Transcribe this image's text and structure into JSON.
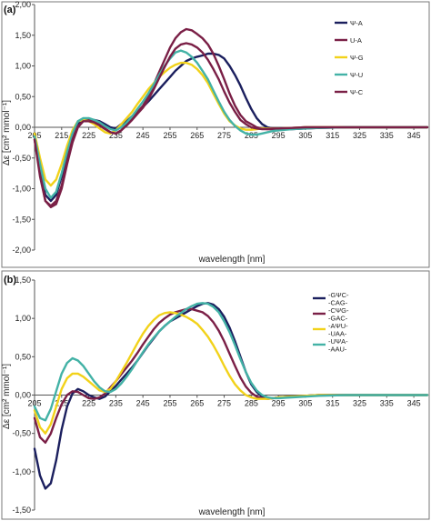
{
  "chart_data": [
    {
      "panel": "(a)",
      "type": "line",
      "xlabel": "wavelength [nm]",
      "ylabel": "Δε [cm² mmol⁻¹]",
      "xlim": [
        205,
        350
      ],
      "ylim": [
        -2.0,
        2.0
      ],
      "x_ticks": [
        205,
        215,
        225,
        235,
        245,
        255,
        265,
        275,
        285,
        295,
        305,
        315,
        325,
        335,
        345
      ],
      "y_ticks": [
        -2.0,
        -1.5,
        -1.0,
        -0.5,
        0.0,
        0.5,
        1.0,
        1.5,
        2.0
      ],
      "y_tick_labels": [
        "-2,00",
        "-1,50",
        "-1,00",
        "-0,50",
        "0,00",
        "0,50",
        "1,00",
        "1,50",
        "2,00"
      ],
      "legend_position": "top-right",
      "series": [
        {
          "name": "Ψ-A",
          "color": "#1b1f5e",
          "x": [
            205,
            207,
            209,
            211,
            213,
            215,
            217,
            219,
            221,
            223,
            225,
            227,
            229,
            231,
            233,
            235,
            237,
            239,
            241,
            243,
            245,
            247,
            249,
            251,
            253,
            255,
            257,
            259,
            261,
            263,
            265,
            267,
            269,
            271,
            273,
            275,
            277,
            279,
            281,
            283,
            285,
            287,
            289,
            291,
            293,
            295,
            300,
            305,
            310,
            320,
            330,
            340,
            350
          ],
          "y": [
            -0.15,
            -0.7,
            -1.1,
            -1.2,
            -1.1,
            -0.8,
            -0.5,
            -0.2,
            0.05,
            0.12,
            0.12,
            0.12,
            0.1,
            0.05,
            0.0,
            -0.02,
            0.05,
            0.1,
            0.18,
            0.25,
            0.33,
            0.42,
            0.52,
            0.62,
            0.72,
            0.82,
            0.92,
            1.0,
            1.08,
            1.12,
            1.15,
            1.17,
            1.2,
            1.2,
            1.18,
            1.12,
            1.0,
            0.85,
            0.68,
            0.48,
            0.3,
            0.15,
            0.05,
            0.0,
            -0.02,
            -0.03,
            -0.03,
            -0.02,
            -0.01,
            0.0,
            0.0,
            0.0,
            0.0
          ]
        },
        {
          "name": "U-A",
          "color": "#7a1f46",
          "x": [
            205,
            207,
            209,
            211,
            213,
            215,
            217,
            219,
            221,
            223,
            225,
            227,
            229,
            231,
            233,
            235,
            237,
            239,
            241,
            243,
            245,
            247,
            249,
            251,
            253,
            255,
            257,
            259,
            261,
            263,
            265,
            267,
            269,
            271,
            273,
            275,
            277,
            279,
            281,
            283,
            285,
            287,
            289,
            291,
            293,
            295,
            300,
            305,
            310,
            320,
            330,
            340,
            350
          ],
          "y": [
            -0.2,
            -0.75,
            -1.2,
            -1.3,
            -1.25,
            -1.0,
            -0.6,
            -0.25,
            0.0,
            0.1,
            0.12,
            0.1,
            0.05,
            -0.02,
            -0.08,
            -0.1,
            -0.05,
            0.05,
            0.15,
            0.25,
            0.35,
            0.5,
            0.7,
            0.9,
            1.1,
            1.3,
            1.45,
            1.55,
            1.6,
            1.58,
            1.52,
            1.45,
            1.35,
            1.2,
            1.0,
            0.78,
            0.55,
            0.35,
            0.2,
            0.1,
            0.05,
            0.0,
            -0.02,
            -0.03,
            -0.03,
            -0.02,
            -0.01,
            0.0,
            0.0,
            0.0,
            0.0,
            0.0,
            0.0
          ]
        },
        {
          "name": "Ψ-G",
          "color": "#f2d21a",
          "x": [
            205,
            207,
            209,
            211,
            213,
            215,
            217,
            219,
            221,
            223,
            225,
            227,
            229,
            231,
            233,
            235,
            237,
            239,
            241,
            243,
            245,
            247,
            249,
            251,
            253,
            255,
            257,
            259,
            261,
            263,
            265,
            267,
            269,
            271,
            273,
            275,
            277,
            279,
            281,
            283,
            285,
            287,
            289,
            291,
            293,
            295,
            300,
            305,
            310,
            320,
            330,
            340,
            350
          ],
          "y": [
            -0.1,
            -0.5,
            -0.85,
            -0.95,
            -0.85,
            -0.6,
            -0.3,
            -0.05,
            0.1,
            0.12,
            0.1,
            0.05,
            -0.02,
            -0.08,
            -0.1,
            -0.05,
            0.05,
            0.15,
            0.25,
            0.38,
            0.5,
            0.62,
            0.72,
            0.82,
            0.9,
            0.97,
            1.02,
            1.05,
            1.05,
            1.02,
            0.95,
            0.85,
            0.72,
            0.55,
            0.38,
            0.22,
            0.1,
            0.03,
            -0.02,
            -0.04,
            -0.04,
            -0.03,
            -0.02,
            -0.02,
            -0.02,
            -0.02,
            -0.01,
            0.0,
            0.0,
            0.0,
            0.0,
            0.0,
            0.0
          ]
        },
        {
          "name": "Ψ-U",
          "color": "#43b2a6",
          "x": [
            205,
            207,
            209,
            211,
            213,
            215,
            217,
            219,
            221,
            223,
            225,
            227,
            229,
            231,
            233,
            235,
            237,
            239,
            241,
            243,
            245,
            247,
            249,
            251,
            253,
            255,
            257,
            259,
            261,
            263,
            265,
            267,
            269,
            271,
            273,
            275,
            277,
            279,
            281,
            283,
            285,
            287,
            289,
            291,
            293,
            295,
            300,
            305,
            310,
            320,
            330,
            340,
            350
          ],
          "y": [
            -0.15,
            -0.6,
            -1.0,
            -1.15,
            -1.05,
            -0.75,
            -0.4,
            -0.1,
            0.1,
            0.15,
            0.15,
            0.12,
            0.08,
            0.02,
            -0.03,
            -0.05,
            0.0,
            0.08,
            0.18,
            0.3,
            0.42,
            0.55,
            0.7,
            0.85,
            1.0,
            1.12,
            1.22,
            1.25,
            1.22,
            1.15,
            1.05,
            0.92,
            0.78,
            0.6,
            0.42,
            0.25,
            0.12,
            0.02,
            -0.05,
            -0.1,
            -0.12,
            -0.12,
            -0.1,
            -0.08,
            -0.06,
            -0.05,
            -0.03,
            -0.02,
            -0.01,
            0.0,
            0.0,
            0.0,
            0.0
          ]
        },
        {
          "name": "Ψ-C",
          "color": "#7a1f46",
          "x": [
            205,
            207,
            209,
            211,
            213,
            215,
            217,
            219,
            221,
            223,
            225,
            227,
            229,
            231,
            233,
            235,
            237,
            239,
            241,
            243,
            245,
            247,
            249,
            251,
            253,
            255,
            257,
            259,
            261,
            263,
            265,
            267,
            269,
            271,
            273,
            275,
            277,
            279,
            281,
            283,
            285,
            287,
            289,
            291,
            293,
            295,
            300,
            305,
            310,
            320,
            330,
            340,
            350
          ],
          "y": [
            -0.2,
            -0.8,
            -1.2,
            -1.28,
            -1.2,
            -0.95,
            -0.55,
            -0.2,
            0.02,
            0.1,
            0.1,
            0.08,
            0.03,
            -0.03,
            -0.08,
            -0.1,
            -0.05,
            0.03,
            0.12,
            0.22,
            0.32,
            0.45,
            0.62,
            0.8,
            0.98,
            1.15,
            1.28,
            1.35,
            1.37,
            1.35,
            1.3,
            1.22,
            1.1,
            0.95,
            0.78,
            0.58,
            0.4,
            0.25,
            0.12,
            0.05,
            0.0,
            -0.02,
            -0.03,
            -0.03,
            -0.02,
            -0.02,
            -0.01,
            0.0,
            0.0,
            0.0,
            0.0,
            0.0,
            0.0
          ]
        }
      ]
    },
    {
      "panel": "(b)",
      "type": "line",
      "xlabel": "wavelength [nm]",
      "ylabel": "Δε [cm² mmol⁻¹]",
      "xlim": [
        205,
        350
      ],
      "ylim": [
        -1.5,
        1.5
      ],
      "x_ticks": [
        205,
        215,
        225,
        235,
        245,
        255,
        265,
        275,
        285,
        295,
        305,
        315,
        325,
        335,
        345
      ],
      "y_ticks": [
        -1.5,
        -1.0,
        -0.5,
        0.0,
        0.5,
        1.0,
        1.5
      ],
      "y_tick_labels": [
        "-1,50",
        "-1,00",
        "-0,50",
        "0,00",
        "0,50",
        "1,00",
        "1,50"
      ],
      "legend_position": "top-right",
      "series": [
        {
          "name": "-GΨC-\n-CAG-",
          "color": "#1b1f5e",
          "x": [
            205,
            207,
            209,
            211,
            213,
            215,
            217,
            219,
            221,
            223,
            225,
            227,
            229,
            231,
            233,
            235,
            237,
            239,
            241,
            243,
            245,
            247,
            249,
            251,
            253,
            255,
            257,
            259,
            261,
            263,
            265,
            267,
            269,
            271,
            273,
            275,
            277,
            279,
            281,
            283,
            285,
            287,
            289,
            291,
            293,
            295,
            300,
            305,
            310,
            320,
            330,
            340,
            350
          ],
          "y": [
            -0.7,
            -1.05,
            -1.22,
            -1.15,
            -0.85,
            -0.45,
            -0.15,
            0.02,
            0.08,
            0.05,
            0.0,
            -0.03,
            -0.05,
            -0.02,
            0.05,
            0.12,
            0.2,
            0.28,
            0.36,
            0.45,
            0.55,
            0.65,
            0.74,
            0.83,
            0.9,
            0.96,
            1.0,
            1.04,
            1.08,
            1.12,
            1.16,
            1.19,
            1.2,
            1.18,
            1.12,
            1.02,
            0.88,
            0.7,
            0.5,
            0.3,
            0.14,
            0.04,
            -0.02,
            -0.04,
            -0.04,
            -0.03,
            -0.02,
            -0.01,
            0.0,
            0.0,
            0.0,
            0.0,
            0.0
          ]
        },
        {
          "name": "-CΨG-\n-GAC-",
          "color": "#7a1f46",
          "x": [
            205,
            207,
            209,
            211,
            213,
            215,
            217,
            219,
            221,
            223,
            225,
            227,
            229,
            231,
            233,
            235,
            237,
            239,
            241,
            243,
            245,
            247,
            249,
            251,
            253,
            255,
            257,
            259,
            261,
            263,
            265,
            267,
            269,
            271,
            273,
            275,
            277,
            279,
            281,
            283,
            285,
            287,
            289,
            291,
            293,
            295,
            300,
            305,
            310,
            320,
            330,
            340,
            350
          ],
          "y": [
            -0.3,
            -0.55,
            -0.62,
            -0.5,
            -0.3,
            -0.12,
            0.0,
            0.05,
            0.04,
            0.0,
            -0.04,
            -0.05,
            -0.03,
            0.02,
            0.1,
            0.18,
            0.27,
            0.36,
            0.45,
            0.55,
            0.66,
            0.76,
            0.86,
            0.94,
            1.0,
            1.05,
            1.08,
            1.1,
            1.12,
            1.12,
            1.1,
            1.08,
            1.03,
            0.95,
            0.84,
            0.7,
            0.54,
            0.38,
            0.23,
            0.11,
            0.03,
            -0.02,
            -0.04,
            -0.05,
            -0.04,
            -0.03,
            -0.02,
            -0.01,
            0.0,
            0.0,
            0.0,
            0.0,
            0.0
          ]
        },
        {
          "name": "-AΨU-\n-UAA-",
          "color": "#f2d21a",
          "x": [
            205,
            207,
            209,
            211,
            213,
            215,
            217,
            219,
            221,
            223,
            225,
            227,
            229,
            231,
            233,
            235,
            237,
            239,
            241,
            243,
            245,
            247,
            249,
            251,
            253,
            255,
            257,
            259,
            261,
            263,
            265,
            267,
            269,
            271,
            273,
            275,
            277,
            279,
            281,
            283,
            285,
            287,
            289,
            291,
            293,
            295,
            300,
            305,
            310,
            320,
            330,
            340,
            350
          ],
          "y": [
            -0.2,
            -0.42,
            -0.5,
            -0.38,
            -0.15,
            0.08,
            0.22,
            0.28,
            0.28,
            0.24,
            0.18,
            0.12,
            0.06,
            0.04,
            0.08,
            0.18,
            0.3,
            0.42,
            0.55,
            0.68,
            0.8,
            0.9,
            0.98,
            1.04,
            1.07,
            1.08,
            1.07,
            1.05,
            1.02,
            0.98,
            0.93,
            0.85,
            0.76,
            0.65,
            0.52,
            0.38,
            0.25,
            0.14,
            0.06,
            0.0,
            -0.03,
            -0.05,
            -0.05,
            -0.05,
            -0.04,
            -0.03,
            -0.02,
            -0.01,
            0.0,
            0.0,
            0.0,
            0.0,
            0.0
          ]
        },
        {
          "name": "-UΨA-\n-AAU-",
          "color": "#43b2a6",
          "x": [
            205,
            207,
            209,
            211,
            213,
            215,
            217,
            219,
            221,
            223,
            225,
            227,
            229,
            231,
            233,
            235,
            237,
            239,
            241,
            243,
            245,
            247,
            249,
            251,
            253,
            255,
            257,
            259,
            261,
            263,
            265,
            267,
            269,
            271,
            273,
            275,
            277,
            279,
            281,
            283,
            285,
            287,
            289,
            291,
            293,
            295,
            300,
            305,
            310,
            320,
            330,
            340,
            350
          ],
          "y": [
            -0.15,
            -0.3,
            -0.33,
            -0.18,
            0.05,
            0.28,
            0.42,
            0.48,
            0.45,
            0.38,
            0.28,
            0.18,
            0.1,
            0.05,
            0.04,
            0.08,
            0.15,
            0.24,
            0.34,
            0.45,
            0.56,
            0.66,
            0.75,
            0.83,
            0.9,
            0.96,
            1.02,
            1.07,
            1.12,
            1.16,
            1.19,
            1.2,
            1.19,
            1.15,
            1.08,
            0.96,
            0.82,
            0.65,
            0.47,
            0.3,
            0.16,
            0.06,
            0.0,
            -0.03,
            -0.04,
            -0.04,
            -0.03,
            -0.02,
            -0.01,
            0.0,
            0.0,
            0.0,
            0.0
          ]
        }
      ]
    }
  ]
}
